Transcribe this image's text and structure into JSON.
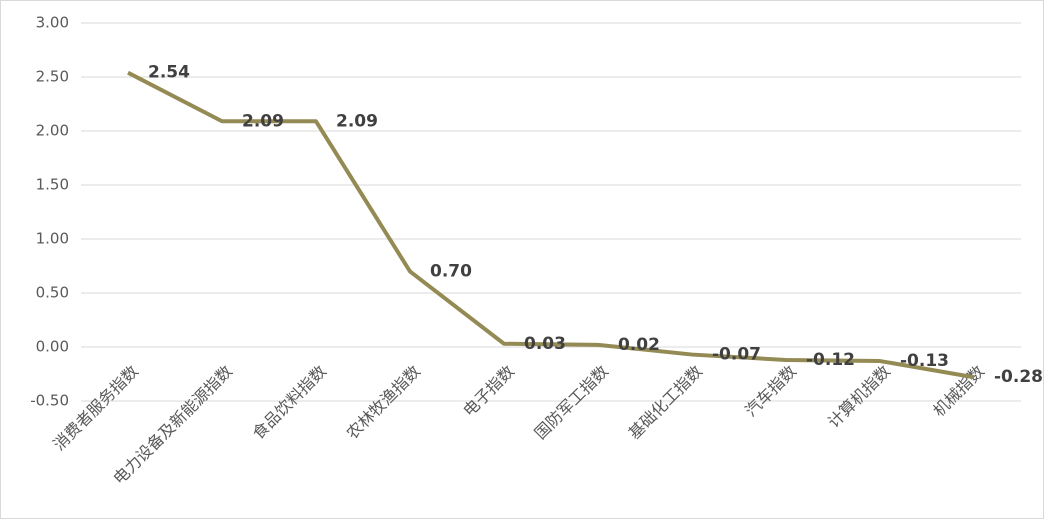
{
  "chart_data": {
    "type": "line",
    "categories": [
      "消费者服务指数",
      "电力设备及新能源指数",
      "食品饮料指数",
      "农林牧渔指数",
      "电子指数",
      "国防军工指数",
      "基础化工指数",
      "汽车指数",
      "计算机指数",
      "机械指数"
    ],
    "series": [
      {
        "color": "#948a54",
        "values": [
          2.54,
          2.09,
          2.09,
          0.7,
          0.03,
          0.02,
          -0.07,
          -0.12,
          -0.13,
          -0.28
        ],
        "value_labels": [
          "2.54",
          "2.09",
          "2.09",
          "0.70",
          "0.03",
          "0.02",
          "-0.07",
          "-0.12",
          "-0.13",
          "-0.28"
        ]
      }
    ],
    "ylim": [
      -0.5,
      3
    ],
    "yticks": [
      {
        "value": -0.5,
        "label": "-0.50"
      },
      {
        "value": 0,
        "label": "0.00"
      },
      {
        "value": 0.5,
        "label": "0.50"
      },
      {
        "value": 1,
        "label": "1.00"
      },
      {
        "value": 1.5,
        "label": "1.50"
      },
      {
        "value": 2,
        "label": "2.00"
      },
      {
        "value": 2.5,
        "label": "2.50"
      },
      {
        "value": 3,
        "label": "3.00"
      }
    ],
    "grid": true
  }
}
